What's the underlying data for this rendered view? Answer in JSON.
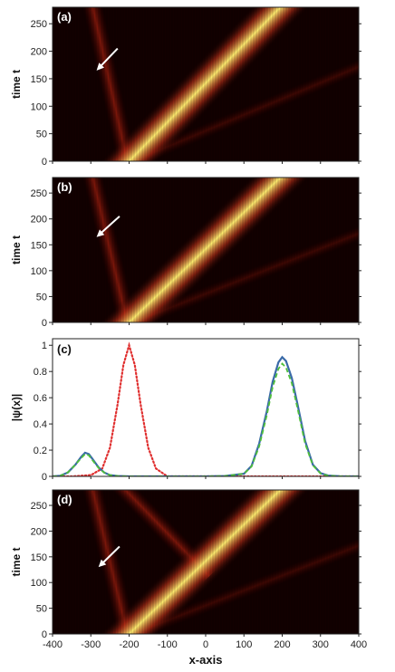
{
  "colors": {
    "heat_low": "#120000",
    "heat_mid": "#c8341a",
    "heat_high": "#ffee70",
    "blue": "#3a6aa8",
    "green": "#4fbf3a",
    "red_dotted": "#e03030",
    "arrow": "#ffffff"
  },
  "chart_data": [
    {
      "type": "heatmap",
      "panel_label": "(a)",
      "ylabel": "time t",
      "xlim": [
        -400,
        400
      ],
      "ylim": [
        0,
        280
      ],
      "y_ticks": [
        "0",
        "50",
        "100",
        "150",
        "200",
        "250"
      ],
      "main_beam": {
        "start": [
          -200,
          0
        ],
        "end": [
          195,
          280
        ]
      },
      "reflected_beam": {
        "start": [
          -205,
          0
        ],
        "end": [
          -295,
          280
        ]
      },
      "faint_beam": {
        "start": [
          -190,
          0
        ],
        "end": [
          360,
          160
        ]
      },
      "arrow": {
        "from": [
          -230,
          205
        ],
        "to": [
          -285,
          165
        ]
      }
    },
    {
      "type": "heatmap",
      "panel_label": "(b)",
      "ylabel": "time t",
      "xlim": [
        -400,
        400
      ],
      "ylim": [
        0,
        280
      ],
      "y_ticks": [
        "0",
        "50",
        "100",
        "150",
        "200",
        "250"
      ],
      "main_beam": {
        "start": [
          -200,
          0
        ],
        "end": [
          195,
          280
        ]
      },
      "reflected_beam": {
        "start": [
          -205,
          0
        ],
        "end": [
          -295,
          280
        ]
      },
      "faint_beam": {
        "start": [
          -190,
          0
        ],
        "end": [
          360,
          160
        ]
      },
      "arrow": {
        "from": [
          -225,
          205
        ],
        "to": [
          -285,
          165
        ]
      }
    },
    {
      "type": "line",
      "panel_label": "(c)",
      "ylabel": "|ψ(x)|",
      "xlim": [
        -400,
        400
      ],
      "ylim": [
        0,
        1.05
      ],
      "y_ticks": [
        "0",
        "0.2",
        "0.4",
        "0.6",
        "0.8",
        "1"
      ],
      "series": [
        {
          "style": "red-dotted",
          "x": [
            -400,
            -350,
            -300,
            -270,
            -250,
            -230,
            -215,
            -200,
            -185,
            -170,
            -150,
            -130,
            -100,
            -50,
            0,
            100,
            200,
            300,
            400
          ],
          "y": [
            0,
            0,
            0.01,
            0.06,
            0.22,
            0.55,
            0.85,
            1.0,
            0.85,
            0.55,
            0.22,
            0.06,
            0.0,
            0,
            0,
            0,
            0,
            0,
            0
          ]
        },
        {
          "style": "solid-blue",
          "x": [
            -400,
            -380,
            -360,
            -340,
            -325,
            -315,
            -305,
            -295,
            -280,
            -265,
            -250,
            -230,
            -200,
            -150,
            -100,
            -50,
            0,
            50,
            100,
            120,
            140,
            160,
            175,
            190,
            200,
            210,
            225,
            240,
            260,
            280,
            300,
            320,
            350,
            400
          ],
          "y": [
            0,
            0.005,
            0.03,
            0.09,
            0.15,
            0.18,
            0.17,
            0.13,
            0.07,
            0.03,
            0.01,
            0.003,
            0,
            0,
            0,
            0,
            0,
            0.003,
            0.02,
            0.08,
            0.25,
            0.5,
            0.72,
            0.87,
            0.91,
            0.88,
            0.75,
            0.55,
            0.27,
            0.09,
            0.025,
            0.006,
            0.001,
            0
          ]
        },
        {
          "style": "dashed-green",
          "x": [
            -400,
            -380,
            -360,
            -340,
            -325,
            -315,
            -305,
            -295,
            -280,
            -265,
            -250,
            -230,
            -200,
            -150,
            -100,
            -50,
            0,
            50,
            100,
            120,
            140,
            160,
            175,
            190,
            200,
            210,
            225,
            240,
            260,
            280,
            300,
            320,
            350,
            400
          ],
          "y": [
            0,
            0.005,
            0.03,
            0.09,
            0.14,
            0.17,
            0.16,
            0.12,
            0.065,
            0.028,
            0.01,
            0.003,
            0,
            0,
            0,
            0,
            0,
            0.003,
            0.02,
            0.075,
            0.23,
            0.47,
            0.68,
            0.82,
            0.86,
            0.83,
            0.71,
            0.52,
            0.25,
            0.085,
            0.022,
            0.005,
            0.001,
            0
          ]
        }
      ]
    },
    {
      "type": "heatmap",
      "panel_label": "(d)",
      "ylabel": "time t",
      "xlabel": "x-axis",
      "xlim": [
        -400,
        400
      ],
      "ylim": [
        0,
        280
      ],
      "y_ticks": [
        "0",
        "50",
        "100",
        "150",
        "200",
        "250"
      ],
      "x_ticks": [
        "-400",
        "-300",
        "-200",
        "-100",
        "0",
        "100",
        "200",
        "300",
        "400"
      ],
      "main_beam": {
        "start": [
          -200,
          0
        ],
        "end": [
          195,
          280
        ]
      },
      "reflected_beam": {
        "start": [
          -205,
          0
        ],
        "end": [
          -295,
          280
        ]
      },
      "faint_beam": {
        "start": [
          -190,
          0
        ],
        "end": [
          360,
          160
        ]
      },
      "extra_beam": {
        "start": [
          -40,
          150
        ],
        "end": [
          -210,
          280
        ]
      },
      "arrow": {
        "from": [
          -225,
          170
        ],
        "to": [
          -280,
          130
        ]
      }
    }
  ]
}
